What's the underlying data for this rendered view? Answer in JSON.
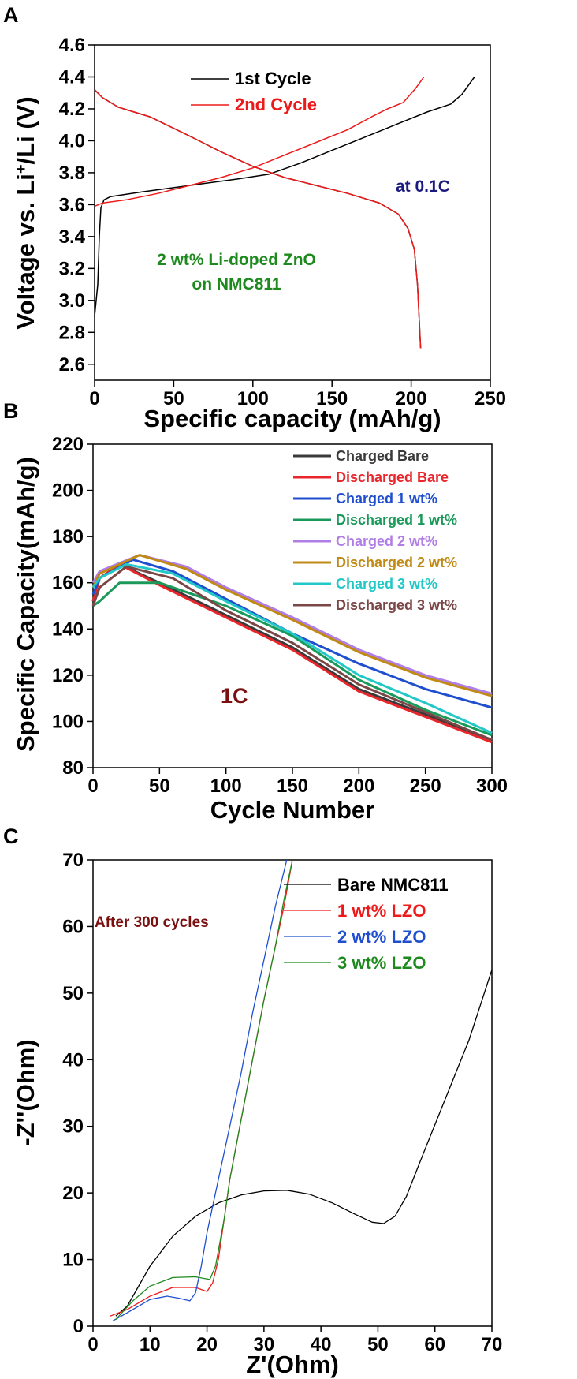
{
  "chart_data": [
    {
      "panel": "A",
      "type": "line",
      "xlabel": "Specific capacity (mAh/g)",
      "ylabel_parts": [
        "Voltage vs. Li",
        "+",
        "/Li (V)"
      ],
      "xlim": [
        0,
        250
      ],
      "ylim": [
        2.5,
        4.6
      ],
      "xticks": [
        0,
        50,
        100,
        150,
        200,
        250
      ],
      "yticks": [
        "2.6",
        "2.8",
        "3.0",
        "3.2",
        "3.4",
        "3.6",
        "3.8",
        "4.0",
        "4.2",
        "4.4",
        "4.6"
      ],
      "legend_position": "top-left",
      "annotations": [
        "at 0.1C",
        "2 wt% Li-doped ZnO",
        "on NMC811"
      ],
      "annotation_colors": [
        "#1a1a80",
        "#1e8a1e"
      ],
      "series": [
        {
          "name": "1st Cycle",
          "color": "#000000",
          "charge": [
            [
              0,
              2.9
            ],
            [
              2,
              3.1
            ],
            [
              3,
              3.4
            ],
            [
              4,
              3.58
            ],
            [
              6,
              3.63
            ],
            [
              10,
              3.65
            ],
            [
              30,
              3.68
            ],
            [
              60,
              3.72
            ],
            [
              90,
              3.76
            ],
            [
              110,
              3.79
            ],
            [
              130,
              3.86
            ],
            [
              150,
              3.94
            ],
            [
              170,
              4.02
            ],
            [
              190,
              4.1
            ],
            [
              210,
              4.18
            ],
            [
              225,
              4.23
            ],
            [
              232,
              4.29
            ],
            [
              240,
              4.4
            ]
          ],
          "discharge": [
            [
              0,
              4.32
            ],
            [
              5,
              4.27
            ],
            [
              15,
              4.21
            ],
            [
              35,
              4.15
            ],
            [
              60,
              4.03
            ],
            [
              80,
              3.93
            ],
            [
              100,
              3.84
            ],
            [
              120,
              3.77
            ],
            [
              140,
              3.72
            ],
            [
              160,
              3.67
            ],
            [
              180,
              3.61
            ],
            [
              192,
              3.54
            ],
            [
              198,
              3.45
            ],
            [
              202,
              3.32
            ],
            [
              204,
              3.1
            ],
            [
              205,
              2.9
            ],
            [
              206,
              2.7
            ]
          ]
        },
        {
          "name": "2nd Cycle",
          "color": "#ee1a1a",
          "charge": [
            [
              0,
              3.59
            ],
            [
              5,
              3.61
            ],
            [
              20,
              3.63
            ],
            [
              40,
              3.67
            ],
            [
              60,
              3.72
            ],
            [
              80,
              3.77
            ],
            [
              100,
              3.83
            ],
            [
              120,
              3.91
            ],
            [
              140,
              3.99
            ],
            [
              160,
              4.07
            ],
            [
              175,
              4.15
            ],
            [
              185,
              4.2
            ],
            [
              195,
              4.24
            ],
            [
              203,
              4.33
            ],
            [
              208,
              4.4
            ]
          ],
          "discharge": [
            [
              0,
              4.32
            ],
            [
              5,
              4.27
            ],
            [
              15,
              4.21
            ],
            [
              35,
              4.15
            ],
            [
              60,
              4.03
            ],
            [
              80,
              3.93
            ],
            [
              100,
              3.84
            ],
            [
              120,
              3.77
            ],
            [
              140,
              3.72
            ],
            [
              160,
              3.67
            ],
            [
              180,
              3.61
            ],
            [
              192,
              3.54
            ],
            [
              198,
              3.45
            ],
            [
              202,
              3.32
            ],
            [
              204,
              3.1
            ],
            [
              205,
              2.9
            ],
            [
              206,
              2.7
            ]
          ]
        }
      ]
    },
    {
      "panel": "B",
      "type": "line",
      "xlabel": "Cycle Number",
      "ylabel": "Specific Capacity(mAh/g)",
      "xlim": [
        0,
        300
      ],
      "ylim": [
        80,
        220
      ],
      "xticks": [
        0,
        50,
        100,
        150,
        200,
        250,
        300
      ],
      "yticks": [
        80,
        100,
        120,
        140,
        160,
        180,
        200,
        220
      ],
      "legend_position": "top-right",
      "annotation": "1C",
      "annotation_color": "#7a1010",
      "series": [
        {
          "name": "Charged Bare",
          "color": "#3a3a3a",
          "values": [
            [
              0,
              152
            ],
            [
              5,
              162
            ],
            [
              20,
              168
            ],
            [
              50,
              160
            ],
            [
              100,
              146
            ],
            [
              150,
              132
            ],
            [
              200,
              114
            ],
            [
              250,
              103
            ],
            [
              300,
              92
            ]
          ]
        },
        {
          "name": "Discharged Bare",
          "color": "#e8262b",
          "values": [
            [
              0,
              152
            ],
            [
              5,
              162
            ],
            [
              20,
              168
            ],
            [
              50,
              159
            ],
            [
              100,
              145
            ],
            [
              150,
              131
            ],
            [
              200,
              113
            ],
            [
              250,
              102
            ],
            [
              300,
              91
            ]
          ]
        },
        {
          "name": "Charged 1 wt%",
          "color": "#1f4fcf",
          "values": [
            [
              0,
              155
            ],
            [
              5,
              162
            ],
            [
              30,
              170
            ],
            [
              60,
              165
            ],
            [
              100,
              153
            ],
            [
              150,
              138
            ],
            [
              200,
              125
            ],
            [
              250,
              114
            ],
            [
              300,
              106
            ]
          ]
        },
        {
          "name": "Discharged 1 wt%",
          "color": "#1a9a5a",
          "values": [
            [
              0,
              150
            ],
            [
              5,
              152
            ],
            [
              20,
              160
            ],
            [
              50,
              160
            ],
            [
              100,
              150
            ],
            [
              150,
              137
            ],
            [
              200,
              118
            ],
            [
              250,
              105
            ],
            [
              300,
              94
            ]
          ]
        },
        {
          "name": "Charged 2 wt%",
          "color": "#b07ee6",
          "values": [
            [
              0,
              160
            ],
            [
              5,
              165
            ],
            [
              35,
              172
            ],
            [
              70,
              167
            ],
            [
              100,
              158
            ],
            [
              150,
              145
            ],
            [
              200,
              131
            ],
            [
              250,
              120
            ],
            [
              300,
              112
            ]
          ]
        },
        {
          "name": "Discharged 2 wt%",
          "color": "#c08a14",
          "values": [
            [
              0,
              158
            ],
            [
              5,
              164
            ],
            [
              35,
              172
            ],
            [
              70,
              166
            ],
            [
              100,
              157
            ],
            [
              150,
              144
            ],
            [
              200,
              130
            ],
            [
              250,
              119
            ],
            [
              300,
              111
            ]
          ]
        },
        {
          "name": "Charged 3 wt%",
          "color": "#22c8c8",
          "values": [
            [
              0,
              158
            ],
            [
              5,
              162
            ],
            [
              25,
              168
            ],
            [
              60,
              164
            ],
            [
              100,
              152
            ],
            [
              150,
              138
            ],
            [
              200,
              120
            ],
            [
              250,
              108
            ],
            [
              300,
              95
            ]
          ]
        },
        {
          "name": "Discharged 3 wt%",
          "color": "#7a4646",
          "values": [
            [
              0,
              150
            ],
            [
              5,
              158
            ],
            [
              25,
              167
            ],
            [
              60,
              162
            ],
            [
              100,
              148
            ],
            [
              150,
              134
            ],
            [
              200,
              116
            ],
            [
              250,
              104
            ],
            [
              300,
              92
            ]
          ]
        }
      ]
    },
    {
      "panel": "C",
      "type": "line",
      "xlabel": "Z'(Ohm)",
      "ylabel": "-Z''(Ohm)",
      "xlim": [
        0,
        70
      ],
      "ylim": [
        0,
        70
      ],
      "xticks": [
        0,
        10,
        20,
        30,
        40,
        50,
        60,
        70
      ],
      "yticks": [
        0,
        10,
        20,
        30,
        40,
        50,
        60,
        70
      ],
      "legend_position": "top-right",
      "annotation": "After 300 cycles",
      "annotation_color": "#7a1010",
      "series": [
        {
          "name": "Bare NMC811",
          "color": "#000000",
          "values": [
            [
              4,
              1.5
            ],
            [
              6,
              3
            ],
            [
              10,
              9
            ],
            [
              14,
              13.5
            ],
            [
              18,
              16.5
            ],
            [
              22,
              18.5
            ],
            [
              26,
              19.7
            ],
            [
              30,
              20.3
            ],
            [
              34,
              20.4
            ],
            [
              38,
              19.8
            ],
            [
              42,
              18.5
            ],
            [
              46,
              16.8
            ],
            [
              49,
              15.6
            ],
            [
              51,
              15.4
            ],
            [
              53,
              16.5
            ],
            [
              55,
              19.5
            ],
            [
              58,
              26
            ],
            [
              62,
              34.5
            ],
            [
              66,
              43
            ],
            [
              70,
              53.5
            ]
          ]
        },
        {
          "name": "1 wt% LZO",
          "color": "#ee1a1a",
          "values": [
            [
              3,
              1.5
            ],
            [
              6,
              2.5
            ],
            [
              10,
              4.5
            ],
            [
              14,
              5.8
            ],
            [
              18,
              5.8
            ],
            [
              20,
              5.2
            ],
            [
              21,
              6.5
            ],
            [
              22,
              10
            ],
            [
              23,
              16
            ],
            [
              24,
              22
            ],
            [
              26,
              31
            ],
            [
              28,
              40
            ],
            [
              30,
              49
            ],
            [
              32,
              57
            ],
            [
              33.5,
              63
            ],
            [
              35,
              70
            ]
          ]
        },
        {
          "name": "2 wt% LZO",
          "color": "#1f4fcf",
          "values": [
            [
              3.5,
              0.8
            ],
            [
              6,
              2
            ],
            [
              10,
              4
            ],
            [
              13,
              4.5
            ],
            [
              15,
              4.2
            ],
            [
              17,
              3.8
            ],
            [
              18,
              5
            ],
            [
              19,
              9
            ],
            [
              20,
              14
            ],
            [
              22,
              22
            ],
            [
              24,
              30
            ],
            [
              26,
              38
            ],
            [
              28,
              47
            ],
            [
              30,
              55
            ],
            [
              32,
              63
            ],
            [
              34,
              70
            ]
          ]
        },
        {
          "name": "3 wt% LZO",
          "color": "#1e8a1e",
          "values": [
            [
              4,
              1
            ],
            [
              7,
              3.8
            ],
            [
              10,
              6
            ],
            [
              14,
              7.3
            ],
            [
              18,
              7.4
            ],
            [
              20.5,
              7
            ],
            [
              21.5,
              9
            ],
            [
              23,
              16
            ],
            [
              24,
              22
            ],
            [
              26,
              31
            ],
            [
              28,
              40
            ],
            [
              30,
              49
            ],
            [
              32,
              57
            ],
            [
              33.5,
              64
            ],
            [
              35,
              70
            ]
          ]
        }
      ]
    }
  ]
}
